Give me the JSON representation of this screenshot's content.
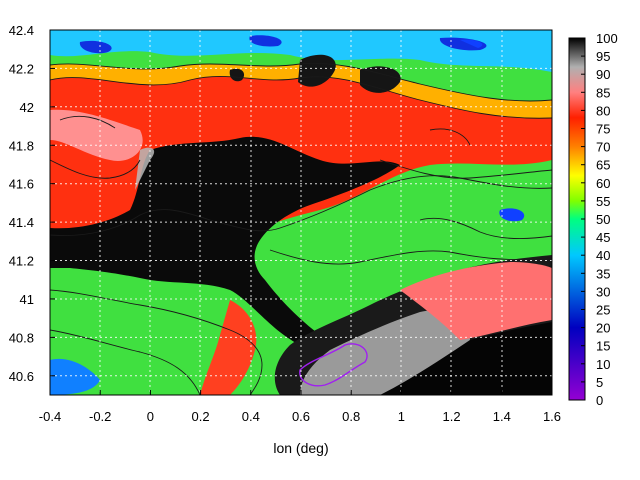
{
  "chart_data": {
    "type": "heatmap",
    "title": "",
    "xlabel": "lon (deg)",
    "ylabel": "",
    "xlim": [
      -0.4,
      1.6
    ],
    "ylim": [
      40.5,
      42.4
    ],
    "x_ticks": [
      "-0.4",
      "-0.2",
      "0",
      "0.2",
      "0.4",
      "0.6",
      "0.8",
      "1",
      "1.2",
      "1.4",
      "1.6"
    ],
    "y_ticks": [
      "40.6",
      "40.8",
      "41",
      "41.2",
      "41.4",
      "41.6",
      "41.8",
      "42",
      "42.2",
      "42.4"
    ],
    "colorbar": {
      "min": 0,
      "max": 100,
      "ticks": [
        "0",
        "5",
        "10",
        "15",
        "20",
        "25",
        "30",
        "35",
        "40",
        "45",
        "50",
        "55",
        "60",
        "65",
        "70",
        "75",
        "80",
        "85",
        "90",
        "95",
        "100"
      ],
      "stops": [
        {
          "value": 0,
          "color": "#9400d3"
        },
        {
          "value": 20,
          "color": "#0000c0"
        },
        {
          "value": 40,
          "color": "#00c8ff"
        },
        {
          "value": 50,
          "color": "#00ff80"
        },
        {
          "value": 55,
          "color": "#80ff00"
        },
        {
          "value": 62,
          "color": "#ffff00"
        },
        {
          "value": 70,
          "color": "#ff8000"
        },
        {
          "value": 78,
          "color": "#ff2000"
        },
        {
          "value": 85,
          "color": "#ff8080"
        },
        {
          "value": 100,
          "color": "#000000"
        }
      ]
    },
    "grid": true
  }
}
